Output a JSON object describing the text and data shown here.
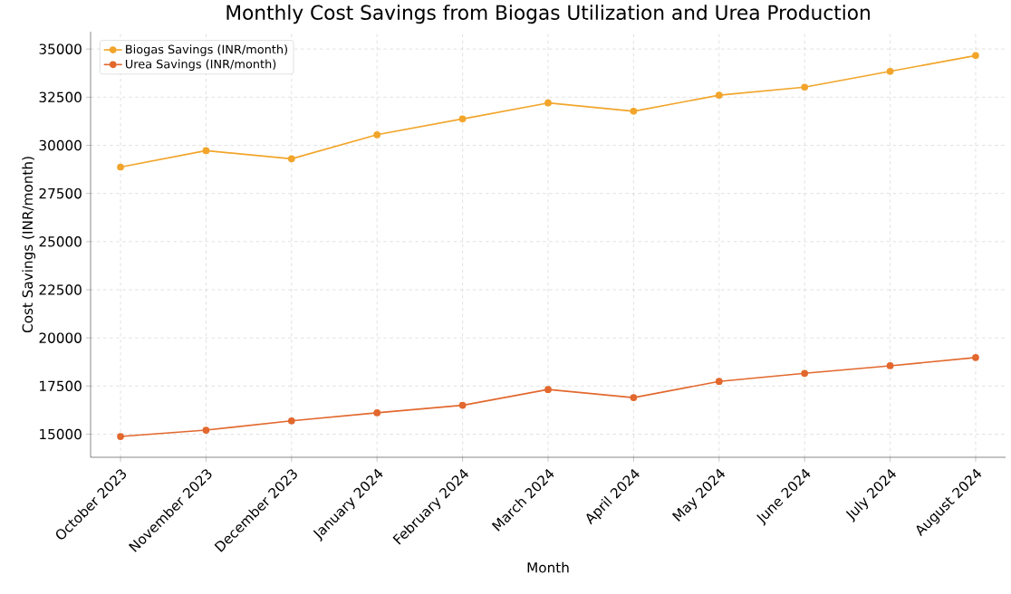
{
  "chart_data": {
    "type": "line",
    "title": "Monthly Cost Savings from Biogas Utilization and Urea Production",
    "xlabel": "Month",
    "ylabel": "Cost Savings (INR/month)",
    "categories": [
      "October 2023",
      "November 2023",
      "December 2023",
      "January 2024",
      "February 2024",
      "March 2024",
      "April 2024",
      "May 2024",
      "June 2024",
      "July 2024",
      "August 2024"
    ],
    "series": [
      {
        "name": "Biogas Savings (INR/month)",
        "color": "#f2a52a",
        "values": [
          28870,
          29720,
          29300,
          30550,
          31370,
          32200,
          31770,
          32600,
          33020,
          33840,
          34660
        ]
      },
      {
        "name": "Urea Savings (INR/month)",
        "color": "#e2682e",
        "values": [
          14880,
          15210,
          15690,
          16110,
          16500,
          17320,
          16900,
          17740,
          18160,
          18550,
          18980
        ]
      }
    ],
    "ylim": [
      13800,
      35900
    ],
    "yticks": [
      15000,
      17500,
      20000,
      22500,
      25000,
      27500,
      30000,
      32500,
      35000
    ],
    "grid": true,
    "legend": "top left",
    "marker": "circle",
    "line_style": "solid"
  }
}
